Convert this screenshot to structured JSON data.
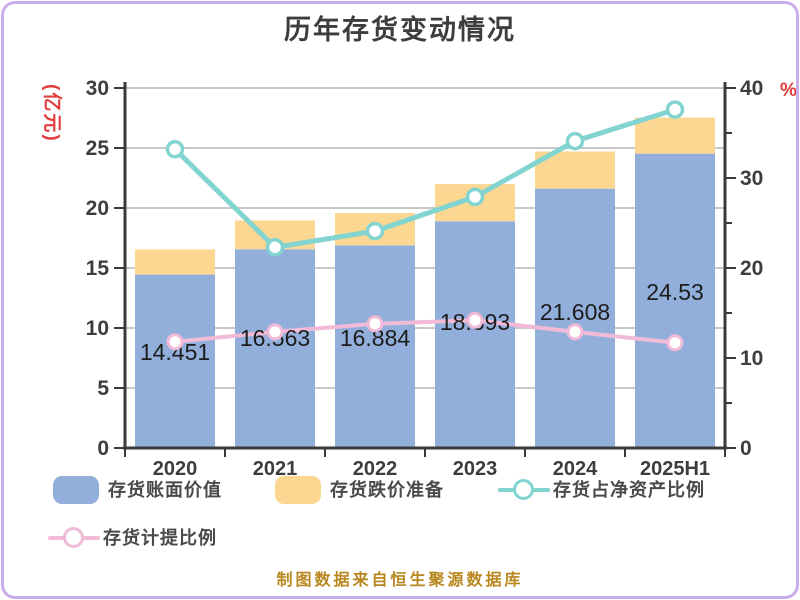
{
  "title": "历年存货变动情况",
  "footer": "制图数据来自恒生聚源数据库",
  "colors": {
    "book_value_bar": "#92afdc",
    "provision_bar": "#fbd792",
    "net_asset_ratio_line": "#82d4d0",
    "provision_ratio_line": "#f1bad6",
    "axis_unit_red": "#e23b3b",
    "grid": "#c8c8c8",
    "axis": "#3a3a3a",
    "tick_label": "#3d3d3d",
    "data_label": "#1c1c1c",
    "footer_gold": "#b8871e",
    "page_border": "#c9aeea"
  },
  "chart_data": {
    "type": "bar",
    "subtype": "stacked-bar-with-lines",
    "categories": [
      "2020",
      "2021",
      "2022",
      "2023",
      "2024",
      "2025H1"
    ],
    "series": [
      {
        "name": "存货账面价值",
        "kind": "bar",
        "stack": true,
        "axis": "left",
        "color": "#92afdc",
        "values": [
          14.451,
          16.563,
          16.884,
          18.893,
          21.608,
          24.53
        ],
        "labels": [
          "14.451",
          "16.563",
          "16.884",
          "18.893",
          "21.608",
          "24.53"
        ]
      },
      {
        "name": "存货跌价准备",
        "kind": "bar",
        "stack": true,
        "axis": "left",
        "color": "#fbd792",
        "values": [
          2.1,
          2.4,
          2.7,
          3.1,
          3.1,
          3.0
        ]
      },
      {
        "name": "存货占净资产比例",
        "kind": "line",
        "axis": "right",
        "color": "#82d4d0",
        "values": [
          33.2,
          22.3,
          24.1,
          27.9,
          34.1,
          37.6
        ]
      },
      {
        "name": "存货计提比例",
        "kind": "line",
        "axis": "right",
        "color": "#f1bad6",
        "values": [
          11.8,
          12.9,
          13.8,
          14.2,
          12.9,
          11.7
        ]
      }
    ],
    "left_axis": {
      "label": "(亿元)",
      "min": 0,
      "max": 30,
      "ticks": [
        30,
        25,
        20,
        15,
        10,
        5,
        0
      ]
    },
    "right_axis": {
      "label": "%",
      "min": 0,
      "max": 40,
      "ticks": [
        40,
        30,
        20,
        10,
        0
      ]
    },
    "grid": true,
    "legend_position": "bottom"
  },
  "legend": {
    "items": [
      {
        "label": "存货账面价值",
        "marker": "blue-swatch"
      },
      {
        "label": "存货跌价准备",
        "marker": "yellow-swatch"
      },
      {
        "label": "存货占净资产比例",
        "marker": "teal-line-circle"
      },
      {
        "label": "存货计提比例",
        "marker": "pink-line-circle"
      }
    ]
  }
}
